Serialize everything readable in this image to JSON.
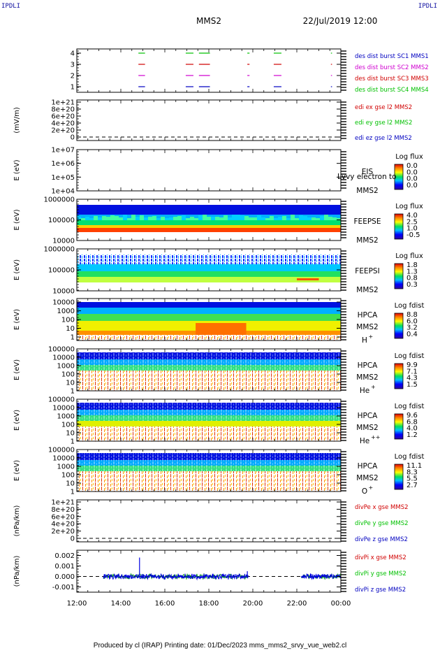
{
  "corner_left": "IPDLI",
  "corner_right": "IPDLI",
  "title": "MMS2",
  "datetime": "22/Jul/2019 12:00",
  "footer": "Produced by cl (IRAP)    Printing date: 01/Dec/2023    mms_mms2_srvy_vue_web2.cl",
  "colors": {
    "blue": "#0000c0",
    "red": "#d00000",
    "magenta": "#d000d0",
    "green": "#00c000"
  },
  "chart_data": {
    "type": "heatmap",
    "x_ticks": [
      "12:00",
      "14:00",
      "16:00",
      "18:00",
      "20:00",
      "22:00",
      "00:00"
    ],
    "xlim_hours": [
      12,
      24
    ],
    "panels": [
      {
        "id": "burst",
        "type": "scatter",
        "ylabel": "",
        "yticks": [
          "1",
          "2",
          "3",
          "4"
        ],
        "legend": [
          {
            "text": "des dist burst SC1 MMS1",
            "color": "#0000c0"
          },
          {
            "text": "des dist burst SC2 MMS2",
            "color": "#d000d0"
          },
          {
            "text": "des dist burst SC3 MMS3",
            "color": "#d00000"
          },
          {
            "text": "des dist burst SC4 MMS4",
            "color": "#00c000"
          }
        ],
        "intervals_hours": [
          [
            14.8,
            15.1
          ],
          [
            16.95,
            17.3
          ],
          [
            17.55,
            18.05
          ],
          [
            19.75,
            19.85
          ],
          [
            20.95,
            21.3
          ],
          [
            23.55,
            23.6
          ]
        ]
      },
      {
        "id": "edi",
        "type": "line",
        "ylabel": "(mV/m)",
        "yticks": [
          "0",
          "2e+20",
          "4e+20",
          "6e+20",
          "8e+20",
          "1e+21"
        ],
        "legend": [
          {
            "text": "edi ex gse l2 MMS2",
            "color": "#d00000"
          },
          {
            "text": "edi ey gse l2 MMS2",
            "color": "#00c000"
          },
          {
            "text": "edi ez gse l2 MMS2",
            "color": "#0000c0"
          }
        ]
      },
      {
        "id": "eis",
        "type": "heatmap",
        "ylabel": "E (eV)",
        "yticks": [
          "1e+04",
          "1e+05",
          "1e+06",
          "1e+07"
        ],
        "instrument": "EIS",
        "spacecraft": "MMS2",
        "overlap_text": "Lvvy electron to",
        "colorbar_title": "Log flux",
        "colorbar_labels": [
          "0.0",
          "0.0",
          "0.0",
          "0.0"
        ]
      },
      {
        "id": "feepse",
        "type": "heatmap",
        "ylabel": "E (eV)",
        "yticks": [
          "10000",
          "100000",
          "1000000"
        ],
        "instrument": "FEEPSE",
        "spacecraft": "MMS2",
        "colorbar_title": "Log flux",
        "colorbar_labels": [
          "4.0",
          "2.5",
          "1.0",
          "-0.5"
        ]
      },
      {
        "id": "feepsi",
        "type": "heatmap",
        "ylabel": "E (eV)",
        "yticks": [
          "10000",
          "100000",
          "1000000"
        ],
        "instrument": "FEEPSI",
        "spacecraft": "MMS2",
        "colorbar_title": "Log flux",
        "colorbar_labels": [
          "1.8",
          "1.3",
          "0.8",
          "0.3"
        ]
      },
      {
        "id": "hpca_h",
        "type": "heatmap",
        "ylabel": "E (eV)",
        "yticks": [
          "1",
          "10",
          "100",
          "1000",
          "10000"
        ],
        "instrument": "HPCA",
        "spacecraft": "MMS2",
        "species": "H",
        "charge": "+",
        "colorbar_title": "Log fdist",
        "colorbar_labels": [
          "8.8",
          "6.0",
          "3.2",
          "0.4"
        ]
      },
      {
        "id": "hpca_he",
        "type": "heatmap",
        "ylabel": "E (eV)",
        "yticks": [
          "1",
          "10",
          "100",
          "1000",
          "10000",
          "100000"
        ],
        "instrument": "HPCA",
        "spacecraft": "MMS2",
        "species": "He",
        "charge": "+",
        "colorbar_title": "Log fdist",
        "colorbar_labels": [
          "9.9",
          "7.1",
          "4.3",
          "1.5"
        ]
      },
      {
        "id": "hpca_hepp",
        "type": "heatmap",
        "ylabel": "E (eV)",
        "yticks": [
          "1",
          "10",
          "100",
          "1000",
          "10000",
          "100000"
        ],
        "instrument": "HPCA",
        "spacecraft": "MMS2",
        "species": "He",
        "charge": "++",
        "colorbar_title": "Log fdist",
        "colorbar_labels": [
          "9.6",
          "6.8",
          "4.0",
          "1.2"
        ]
      },
      {
        "id": "hpca_o",
        "type": "heatmap",
        "ylabel": "E (eV)",
        "yticks": [
          "1",
          "10",
          "100",
          "1000",
          "10000",
          "100000"
        ],
        "instrument": "HPCA",
        "spacecraft": "MMS2",
        "species": "O",
        "charge": "+",
        "colorbar_title": "Log fdist",
        "colorbar_labels": [
          "11.1",
          "8.3",
          "5.5",
          "2.7"
        ]
      },
      {
        "id": "divpe",
        "type": "line",
        "ylabel": "(nPa/km)",
        "yticks": [
          "0",
          "2e+20",
          "4e+20",
          "6e+20",
          "8e+20",
          "1e+21"
        ],
        "legend": [
          {
            "text": "divPe x gse MMS2",
            "color": "#d00000"
          },
          {
            "text": "divPe y gse MMS2",
            "color": "#00c000"
          },
          {
            "text": "divPe z gse MMS2",
            "color": "#0000c0"
          }
        ]
      },
      {
        "id": "divpi",
        "type": "line",
        "ylabel": "(nPa/km)",
        "yticks": [
          "-0.001",
          "0.000",
          "0.001",
          "0.002"
        ],
        "ylim": [
          -0.0015,
          0.0025
        ],
        "legend": [
          {
            "text": "divPi x gse MMS2",
            "color": "#d00000"
          },
          {
            "text": "divPi y gse MMS2",
            "color": "#00c000"
          },
          {
            "text": "divPi z gse MMS2",
            "color": "#0000c0"
          }
        ],
        "data_intervals_hours": [
          [
            13.2,
            19.8
          ],
          [
            22.2,
            24.0
          ]
        ],
        "spikes": [
          {
            "x": 14.85,
            "y": 0.0018
          },
          {
            "x": 19.75,
            "y": 0.0005
          }
        ]
      }
    ]
  }
}
